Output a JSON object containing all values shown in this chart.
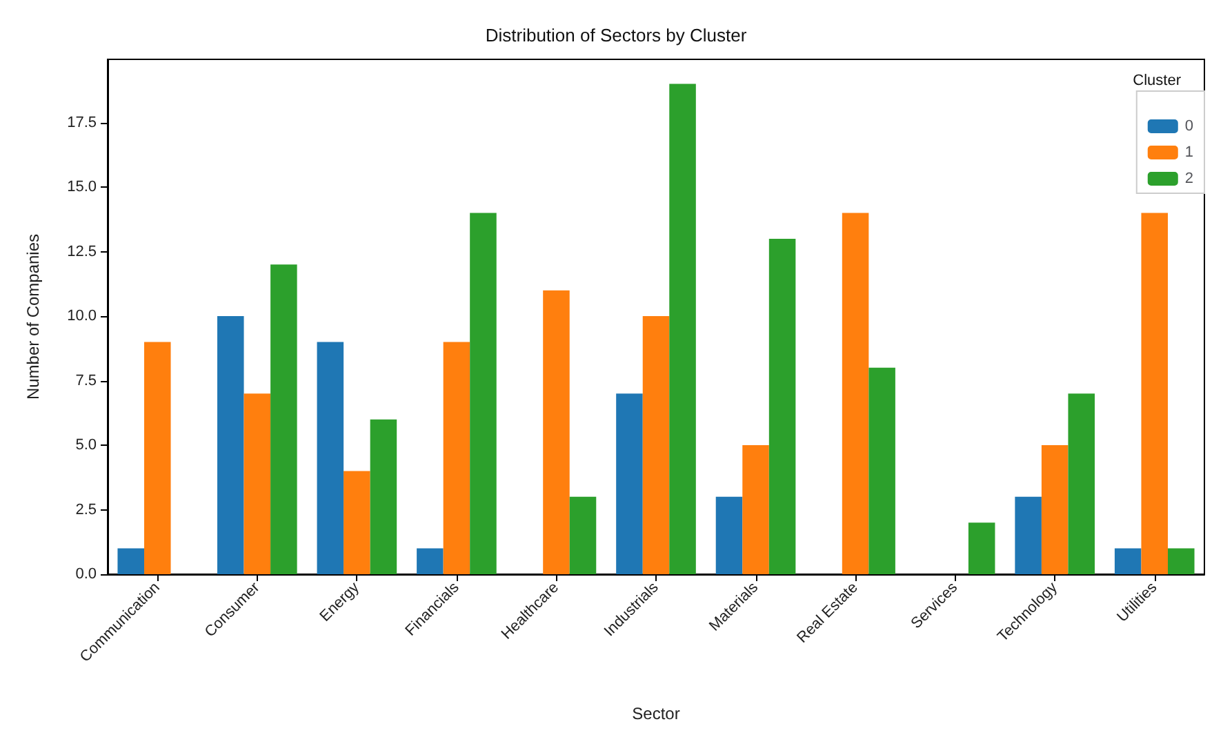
{
  "chart_data": {
    "type": "bar",
    "title": "Distribution of Sectors by Cluster",
    "xlabel": "Sector",
    "ylabel": "Number of Companies",
    "legend_title": "Cluster",
    "legend": "top right",
    "grid": false,
    "categories": [
      "Communication",
      "Consumer",
      "Energy",
      "Financials",
      "Healthcare",
      "Industrials",
      "Materials",
      "Real Estate",
      "Services",
      "Technology",
      "Utilities"
    ],
    "series": [
      {
        "name": "0",
        "color": "#1f77b4",
        "values": [
          1,
          10,
          9,
          1,
          null,
          7,
          3,
          null,
          null,
          3,
          1
        ]
      },
      {
        "name": "1",
        "color": "#ff7f0e",
        "values": [
          9,
          7,
          4,
          9,
          11,
          10,
          5,
          14,
          null,
          5,
          14
        ]
      },
      {
        "name": "2",
        "color": "#2ca02c",
        "values": [
          null,
          12,
          6,
          14,
          3,
          19,
          13,
          8,
          2,
          7,
          1
        ]
      }
    ],
    "ylim": [
      0,
      19.95
    ],
    "yticks": [
      {
        "value": 0,
        "label": "0.0"
      },
      2.5,
      {
        "value": 5,
        "label": "5.0"
      },
      7.5,
      {
        "value": 10,
        "label": "10.0"
      },
      12.5,
      {
        "value": 15,
        "label": "15.0"
      },
      17.5
    ]
  }
}
